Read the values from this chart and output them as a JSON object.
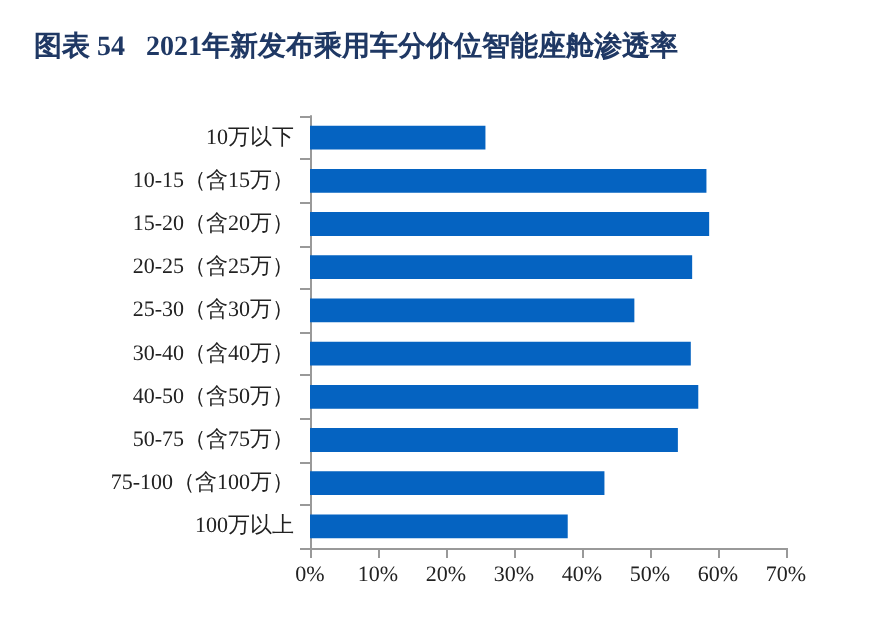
{
  "chart_data": {
    "type": "bar",
    "orientation": "horizontal",
    "title": "图表 54   2021年新发布乘用车分价位智能座舱渗透率",
    "categories": [
      "10万以下",
      "10-15（含15万）",
      "15-20（含20万）",
      "20-25（含25万）",
      "25-30（含30万）",
      "30-40（含40万）",
      "40-50（含50万）",
      "50-75（含75万）",
      "75-100（含100万）",
      "100万以上"
    ],
    "values": [
      25.8,
      58.3,
      58.7,
      56.2,
      47.7,
      56.0,
      57.1,
      54.1,
      43.3,
      37.9
    ],
    "color": "#0563c1",
    "xlim": [
      0,
      70
    ],
    "xticks": [
      {
        "value": 0,
        "label": "0%"
      },
      {
        "value": 10,
        "label": "10%"
      },
      {
        "value": 20,
        "label": "20%"
      },
      {
        "value": 30,
        "label": "30%"
      },
      {
        "value": 40,
        "label": "40%"
      },
      {
        "value": 50,
        "label": "50%"
      },
      {
        "value": 60,
        "label": "60%"
      },
      {
        "value": 70,
        "label": "70%"
      }
    ],
    "grid": false
  }
}
